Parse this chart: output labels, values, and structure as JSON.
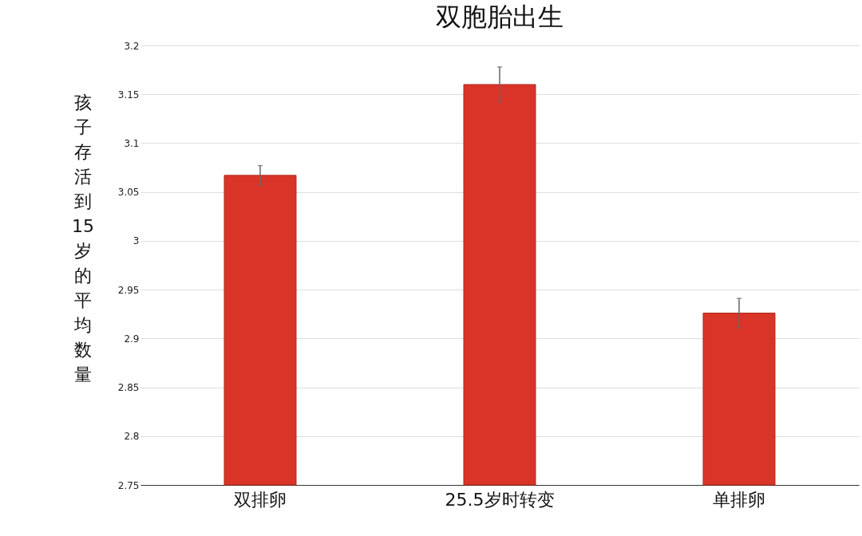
{
  "chart_data": {
    "type": "bar",
    "title": "双胞胎出生",
    "ylabel": "孩子存活到15岁的平均数量",
    "categories": [
      "双排卵",
      "25.5岁时转变",
      "单排卵"
    ],
    "values": [
      3.067,
      3.16,
      2.926
    ],
    "errors": [
      0.01,
      0.018,
      0.015
    ],
    "color": "#d93427",
    "ylim": [
      2.75,
      3.2
    ],
    "yticks": [
      2.75,
      2.8,
      2.85,
      2.9,
      2.95,
      3,
      3.05,
      3.1,
      3.15,
      3.2
    ],
    "grid": "y"
  }
}
